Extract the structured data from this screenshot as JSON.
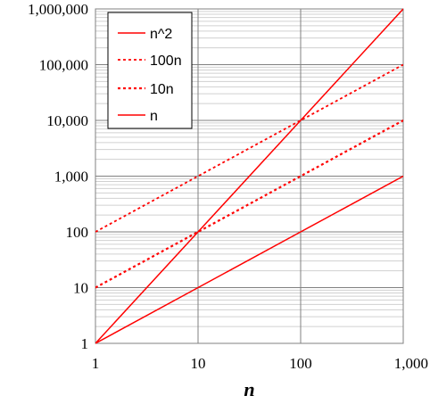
{
  "chart_data": {
    "type": "line",
    "title": "",
    "xlabel": "n",
    "ylabel": "",
    "x_scale": "log",
    "y_scale": "log",
    "xlim": [
      1,
      1000
    ],
    "ylim": [
      1,
      1000000
    ],
    "x_ticks": [
      1,
      10,
      100,
      1000
    ],
    "x_tick_labels": [
      "1",
      "10",
      "100",
      "1,000"
    ],
    "y_ticks": [
      1,
      10,
      100,
      1000,
      10000,
      100000,
      1000000
    ],
    "y_tick_labels": [
      "1",
      "10",
      "100",
      "1,000",
      "10,000",
      "100,000",
      "1,000,000"
    ],
    "grid": true,
    "legend_position": "top-left",
    "x": [
      1,
      10,
      100,
      1000
    ],
    "series": [
      {
        "name": "n^2",
        "values": [
          1,
          100,
          10000,
          1000000
        ],
        "color": "#ff0000",
        "style": "solid",
        "width": 1.5
      },
      {
        "name": "100n",
        "values": [
          100,
          1000,
          10000,
          100000
        ],
        "color": "#ff0000",
        "style": "dotted",
        "width": 1.8
      },
      {
        "name": "10n",
        "values": [
          10,
          100,
          1000,
          10000
        ],
        "color": "#ff0000",
        "style": "dotted",
        "width": 2.2
      },
      {
        "name": "n",
        "values": [
          1,
          10,
          100,
          1000
        ],
        "color": "#ff0000",
        "style": "solid",
        "width": 1.5
      }
    ]
  }
}
